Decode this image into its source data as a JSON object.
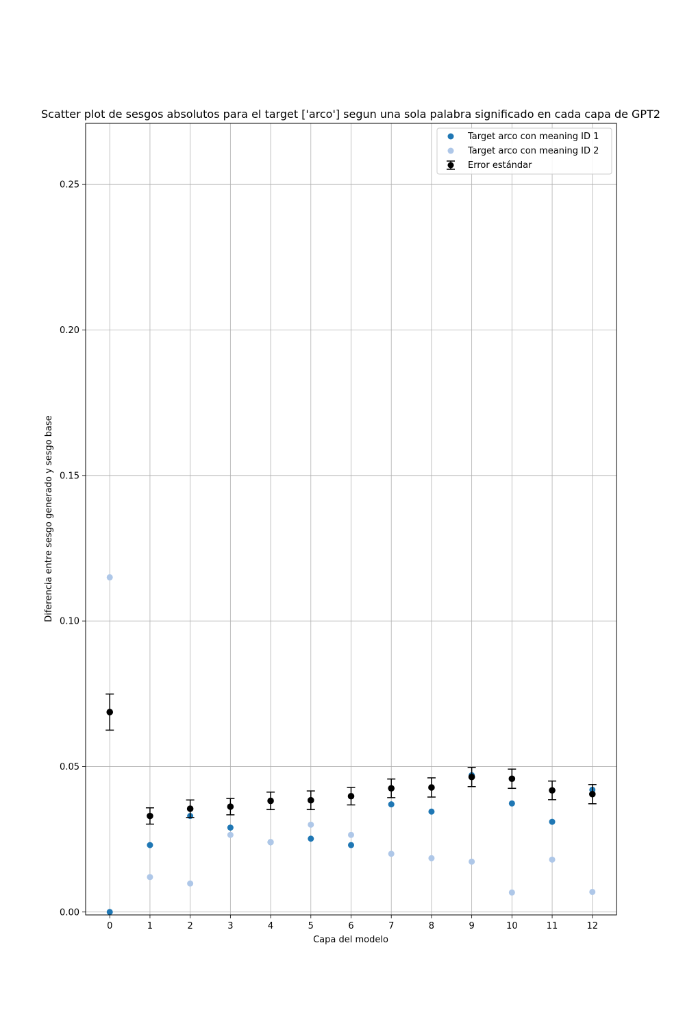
{
  "chart_data": {
    "type": "scatter",
    "title": "Scatter plot de sesgos absolutos para el target ['arco'] segun una sola palabra significado en cada capa de GPT2",
    "xlabel": "Capa del modelo",
    "ylabel": "Diferencia entre sesgo generado y sesgo base",
    "x": [
      0,
      1,
      2,
      3,
      4,
      5,
      6,
      7,
      8,
      9,
      10,
      11,
      12
    ],
    "x_tick_labels": [
      "0",
      "1",
      "2",
      "3",
      "4",
      "5",
      "6",
      "7",
      "8",
      "9",
      "10",
      "11",
      "12"
    ],
    "y_ticks": [
      0.0,
      0.05,
      0.1,
      0.15,
      0.2,
      0.25
    ],
    "y_tick_labels": [
      "0.00",
      "0.05",
      "0.10",
      "0.15",
      "0.20",
      "0.25"
    ],
    "xlim": [
      -0.6,
      12.6
    ],
    "ylim": [
      -0.001,
      0.271
    ],
    "grid": true,
    "legend_position": "top-right",
    "series": [
      {
        "name": "Target arco con meaning ID 1",
        "kind": "points",
        "color": "#1f77b4",
        "values": [
          0.0,
          0.023,
          0.033,
          0.029,
          0.024,
          0.0252,
          0.023,
          0.037,
          0.0345,
          0.047,
          0.0373,
          0.031,
          0.042
        ]
      },
      {
        "name": "Target arco con meaning ID 2",
        "kind": "points",
        "color": "#aec7e8",
        "values": [
          0.115,
          0.012,
          0.0098,
          0.0265,
          0.024,
          0.03,
          0.0265,
          0.02,
          0.0185,
          0.0173,
          0.0067,
          0.018,
          0.0069
        ]
      },
      {
        "name": "Error estándar",
        "kind": "errorbar",
        "color": "#000000",
        "values": [
          0.0687,
          0.033,
          0.0355,
          0.0362,
          0.0382,
          0.0384,
          0.0398,
          0.0425,
          0.0428,
          0.0464,
          0.0458,
          0.0418,
          0.0405
        ],
        "errors": [
          0.0062,
          0.0028,
          0.003,
          0.0028,
          0.003,
          0.0032,
          0.003,
          0.0032,
          0.0033,
          0.0033,
          0.0033,
          0.0032,
          0.0033
        ]
      }
    ]
  }
}
